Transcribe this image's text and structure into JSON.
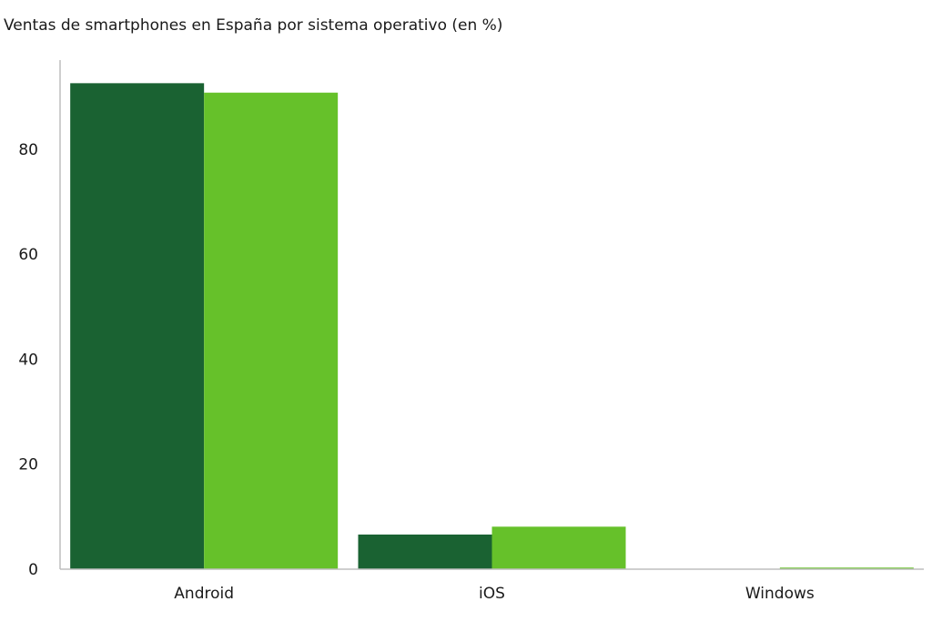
{
  "chart_data": {
    "type": "bar",
    "title": "Ventas de smartphones en España por sistema operativo (en %)",
    "xlabel": "",
    "ylabel": "",
    "categories": [
      "Android",
      "iOS",
      "Windows"
    ],
    "series": [
      {
        "values": [
          92.6,
          6.6,
          0.0
        ],
        "color": "#1a6232"
      },
      {
        "values": [
          90.8,
          8.1,
          0.3
        ],
        "color": "#66c12a"
      }
    ],
    "ylim": [
      0,
      97
    ],
    "yticks": [
      0,
      20,
      40,
      60,
      80
    ],
    "grid": false,
    "legend": "none"
  }
}
